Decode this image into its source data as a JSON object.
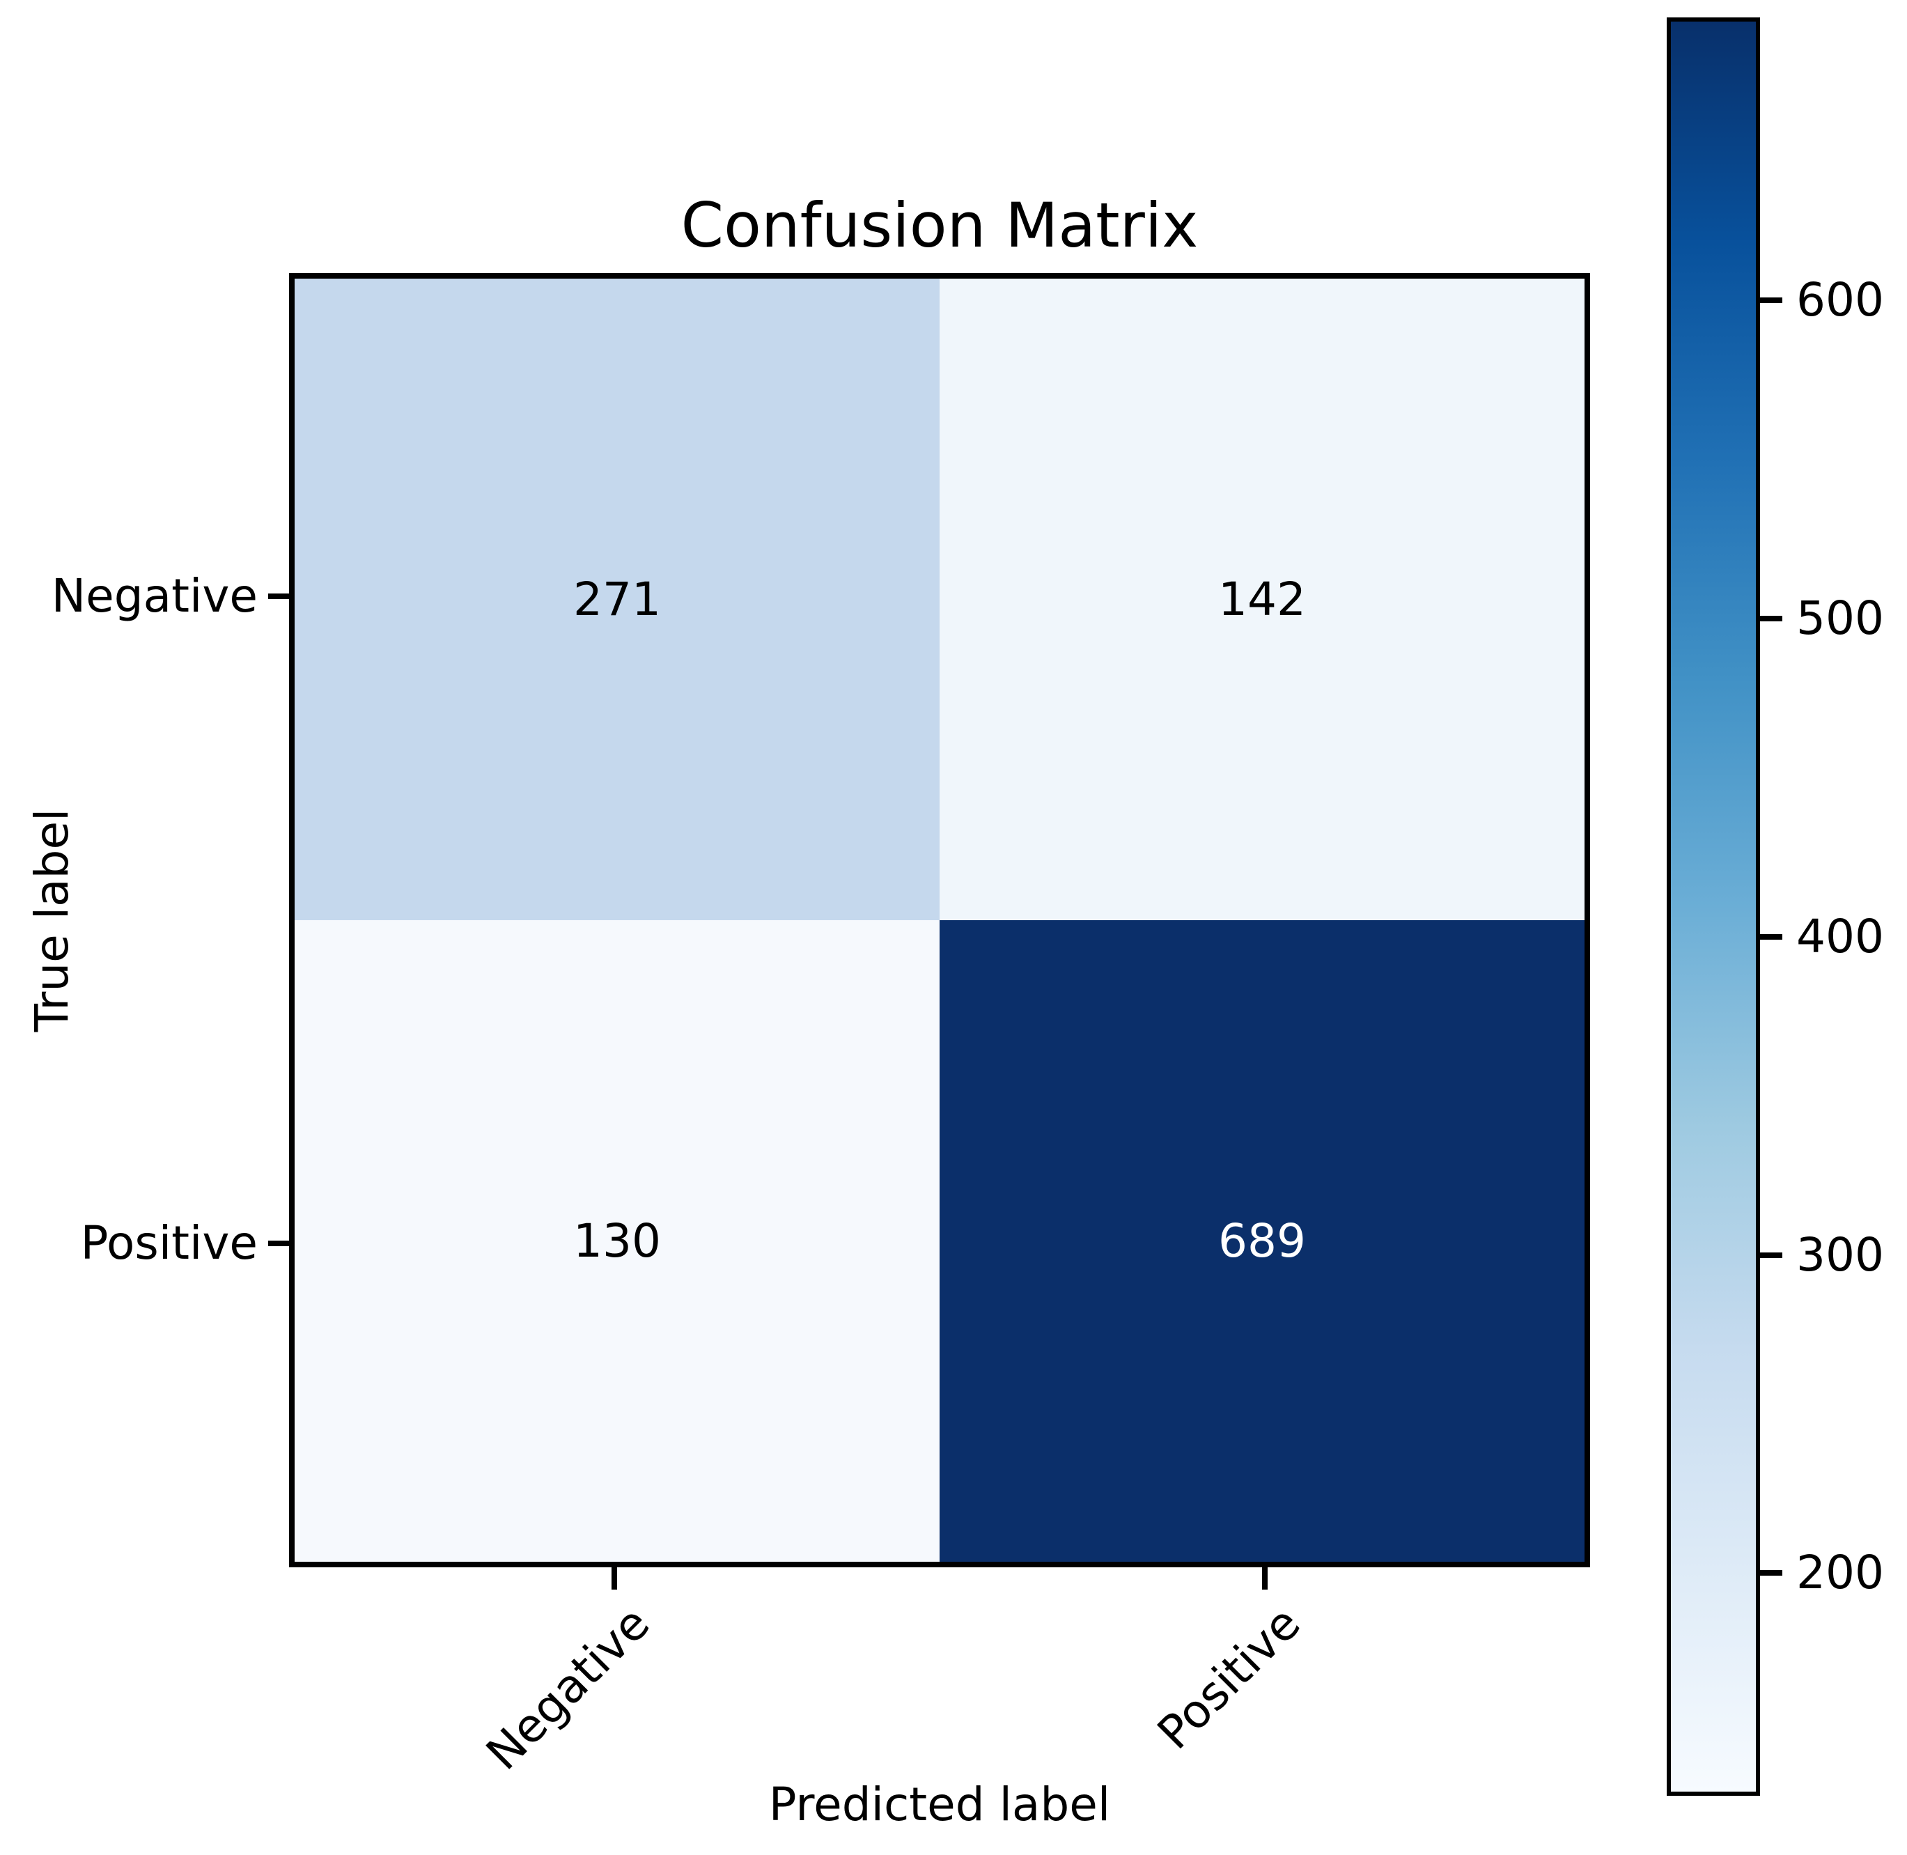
{
  "chart_data": {
    "type": "heatmap",
    "title": "Confusion Matrix",
    "xlabel": "Predicted label",
    "ylabel": "True label",
    "x_categories": [
      "Negative",
      "Positive"
    ],
    "y_categories": [
      "Negative",
      "Positive"
    ],
    "matrix": [
      [
        271,
        142
      ],
      [
        130,
        689
      ]
    ],
    "cells": [
      {
        "row": "Negative",
        "col": "Negative",
        "value": "271",
        "bg": "#c5d8ed",
        "text_color": "#000000"
      },
      {
        "row": "Negative",
        "col": "Positive",
        "value": "142",
        "bg": "#f0f6fb",
        "text_color": "#000000"
      },
      {
        "row": "Positive",
        "col": "Negative",
        "value": "130",
        "bg": "#f6f9fd",
        "text_color": "#000000"
      },
      {
        "row": "Positive",
        "col": "Positive",
        "value": "689",
        "bg": "#0b2f6a",
        "text_color": "#ffffff"
      }
    ],
    "colormap": "Blues",
    "colorbar": {
      "vmin": 130,
      "vmax": 689,
      "ticks": [
        600,
        500,
        400,
        300,
        200
      ],
      "gradient_stops": [
        "#08306b",
        "#08519c",
        "#2171b5",
        "#4292c6",
        "#6baed6",
        "#9ecae1",
        "#c6dbef",
        "#deebf7",
        "#f7fbff"
      ]
    },
    "grid": false,
    "legend": false
  },
  "colors": {
    "axis": "#000000",
    "background": "#ffffff",
    "max_cell": "#0b2f6a",
    "min_cell": "#f6f9fd"
  }
}
